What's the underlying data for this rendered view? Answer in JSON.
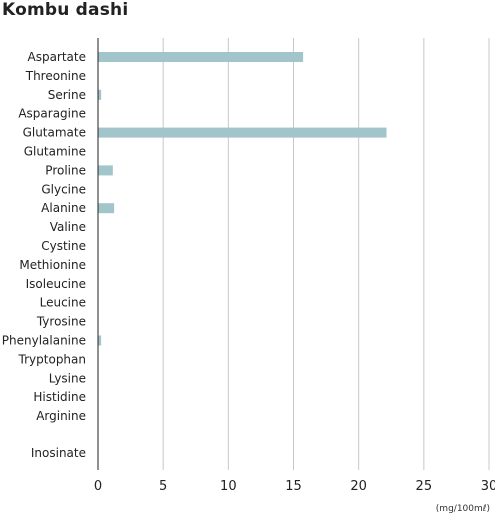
{
  "chart_data": {
    "type": "bar",
    "orientation": "horizontal",
    "title": "Kombu dashi",
    "unit_label": "(mg/100mℓ)",
    "categories": [
      "Aspartate",
      "Threonine",
      "Serine",
      "Asparagine",
      "Glutamate",
      "Glutamine",
      "Proline",
      "Glycine",
      "Alanine",
      "Valine",
      "Cystine",
      "Methionine",
      "Isoleucine",
      "Leucine",
      "Tyrosine",
      "Phenylalanine",
      "Tryptophan",
      "Lysine",
      "Histidine",
      "Arginine",
      "Inosinate"
    ],
    "values": [
      15.7,
      0,
      0.2,
      0,
      22.1,
      0,
      1.1,
      0,
      1.2,
      0,
      0,
      0,
      0,
      0,
      0,
      0.2,
      0,
      0,
      0,
      0,
      0
    ],
    "xlim": [
      0,
      30
    ],
    "xticks": [
      0,
      5,
      10,
      15,
      20,
      25,
      30
    ],
    "grid": true,
    "bar_color": "#a2c4cb",
    "grid_color": "#c8c8c8"
  }
}
